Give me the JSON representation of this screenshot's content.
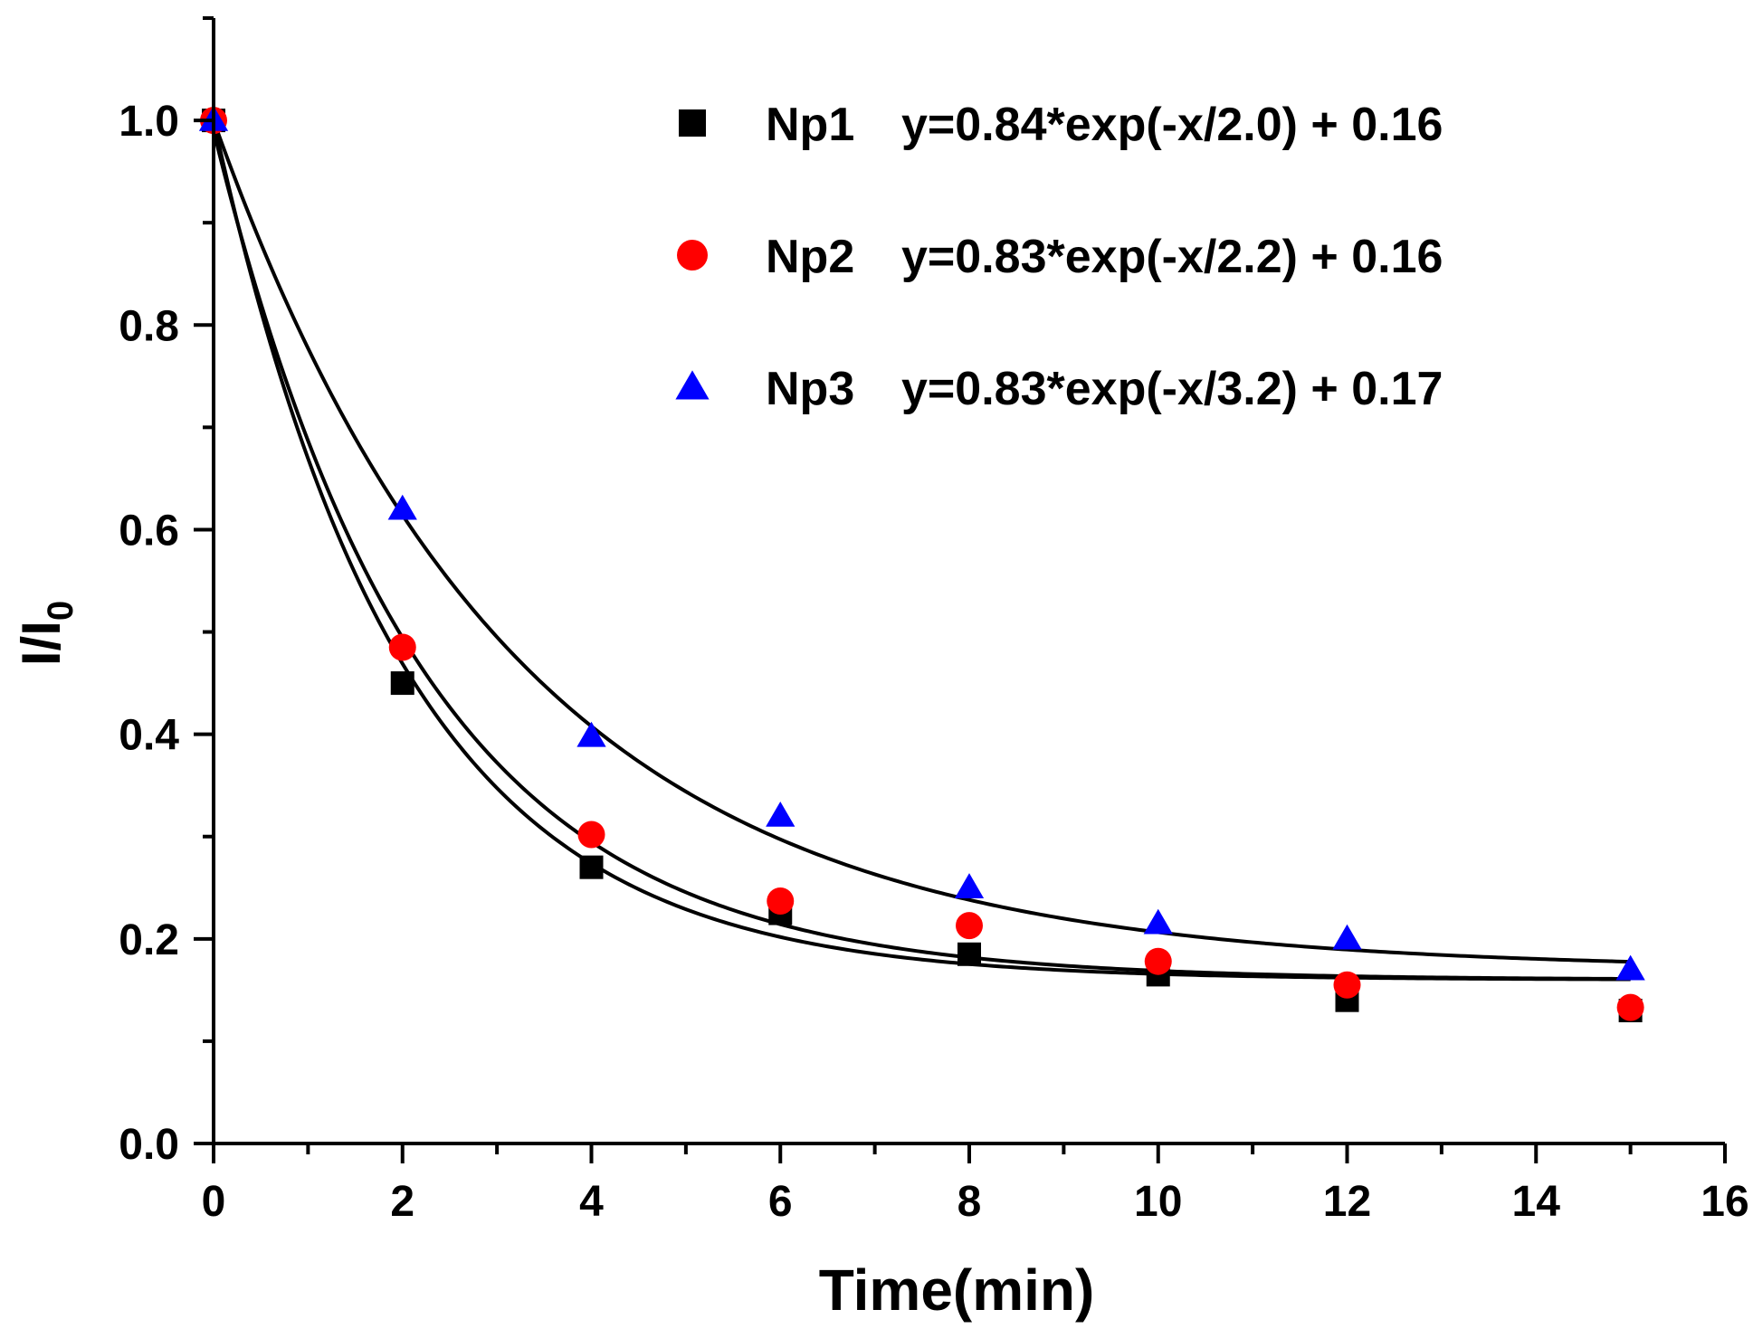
{
  "chart_data": {
    "type": "scatter",
    "title": "",
    "xlabel": "Time(min)",
    "ylabel_main": "I/I",
    "ylabel_sub": "0",
    "xlim": [
      0,
      16
    ],
    "ylim": [
      0,
      1.1
    ],
    "x_ticks": [
      0,
      2,
      4,
      6,
      8,
      10,
      12,
      14,
      16
    ],
    "x_tick_labels": [
      "0",
      "2",
      "4",
      "6",
      "8",
      "10",
      "12",
      "14",
      "16"
    ],
    "y_ticks": [
      0.0,
      0.2,
      0.4,
      0.6,
      0.8,
      1.0
    ],
    "y_tick_labels": [
      "0.0",
      "0.2",
      "0.4",
      "0.6",
      "0.8",
      "1.0"
    ],
    "grid": false,
    "legend_position": "top-right",
    "series": [
      {
        "name": "Np1",
        "equation": "y=0.84*exp(-x/2.0) + 0.16",
        "marker": "square",
        "color": "#000000",
        "x": [
          0,
          2,
          4,
          6,
          8,
          10,
          12,
          15
        ],
        "y": [
          1.0,
          0.45,
          0.27,
          0.225,
          0.185,
          0.165,
          0.14,
          0.13
        ],
        "fit": {
          "a": 0.84,
          "tau": 2.0,
          "c": 0.16
        }
      },
      {
        "name": "Np2",
        "equation": "y=0.83*exp(-x/2.2) + 0.16",
        "marker": "circle",
        "color": "#ff0000",
        "x": [
          0,
          2,
          4,
          6,
          8,
          10,
          12,
          15
        ],
        "y": [
          1.0,
          0.485,
          0.302,
          0.237,
          0.213,
          0.178,
          0.155,
          0.133
        ],
        "fit": {
          "a": 0.83,
          "tau": 2.2,
          "c": 0.16
        }
      },
      {
        "name": "Np3",
        "equation": "y=0.83*exp(-x/3.2) + 0.17",
        "marker": "triangle",
        "color": "#0000ff",
        "x": [
          0,
          2,
          4,
          6,
          8,
          10,
          12,
          15
        ],
        "y": [
          1.0,
          0.62,
          0.398,
          0.32,
          0.25,
          0.215,
          0.2,
          0.17
        ],
        "fit": {
          "a": 0.83,
          "tau": 3.2,
          "c": 0.17
        }
      }
    ]
  }
}
